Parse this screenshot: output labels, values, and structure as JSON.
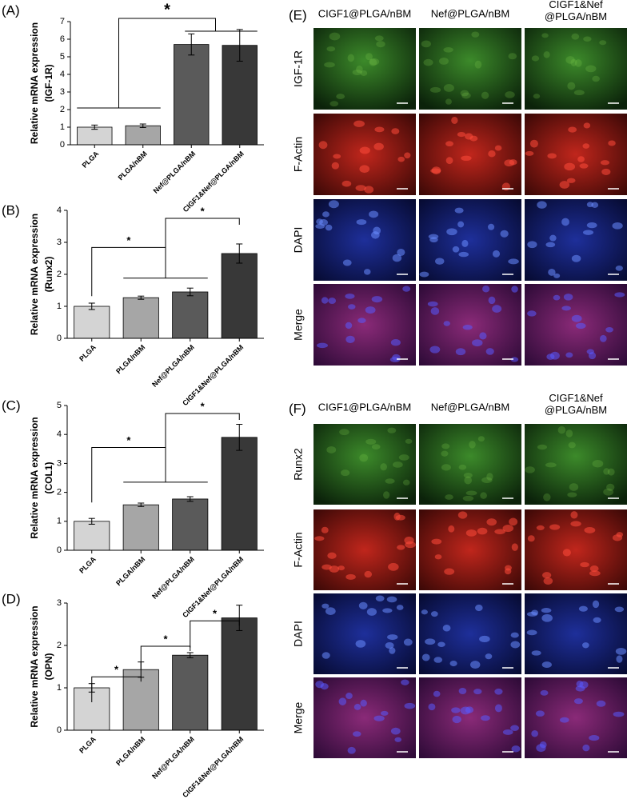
{
  "chart_data": [
    {
      "type": "bar",
      "panel_label": "(A)",
      "ylabel": [
        "Relative mRNA expression",
        "(IGF-1R)"
      ],
      "categories": [
        "PLGA",
        "PLGA/nBM",
        "Nef@PLGA/nBM",
        "CIGF1&Nef@PLGA/nBM"
      ],
      "values": [
        1.0,
        1.08,
        5.7,
        5.65
      ],
      "errors": [
        0.12,
        0.1,
        0.6,
        0.9
      ],
      "colors": [
        "#d4d4d4",
        "#a6a6a6",
        "#5a5a5a",
        "#383838"
      ],
      "ylim": [
        0,
        7
      ],
      "yticks": [
        0,
        1,
        2,
        3,
        4,
        5,
        6,
        7
      ],
      "annotations": [
        "*"
      ]
    },
    {
      "type": "bar",
      "panel_label": "(B)",
      "ylabel": [
        "Relative mRNA expression",
        "(Runx2)"
      ],
      "categories": [
        "PLGA",
        "PLGA/nBM",
        "Nef@PLGA/nBM",
        "CIGF1&Nef@PLGA/nBM"
      ],
      "values": [
        1.0,
        1.27,
        1.45,
        2.65
      ],
      "errors": [
        0.1,
        0.05,
        0.12,
        0.3
      ],
      "colors": [
        "#d4d4d4",
        "#a6a6a6",
        "#5a5a5a",
        "#383838"
      ],
      "ylim": [
        0,
        4
      ],
      "yticks": [
        0,
        1,
        2,
        3,
        4
      ],
      "annotations": [
        "*",
        "*"
      ]
    },
    {
      "type": "bar",
      "panel_label": "(C)",
      "ylabel": [
        "Relative mRNA expression",
        "(COL1)"
      ],
      "categories": [
        "PLGA",
        "PLGA/nBM",
        "Nef@PLGA/nBM",
        "CIGF1&Nef@PLGA/nBM"
      ],
      "values": [
        1.0,
        1.57,
        1.77,
        3.9
      ],
      "errors": [
        0.1,
        0.06,
        0.08,
        0.45
      ],
      "colors": [
        "#d4d4d4",
        "#a6a6a6",
        "#5a5a5a",
        "#383838"
      ],
      "ylim": [
        0,
        5
      ],
      "yticks": [
        0,
        1,
        2,
        3,
        4,
        5
      ],
      "annotations": [
        "*",
        "*"
      ]
    },
    {
      "type": "bar",
      "panel_label": "(D)",
      "ylabel": [
        "Relative mRNA expression",
        "(OPN)"
      ],
      "categories": [
        "PLGA",
        "PLGA/nBM",
        "Nef@PLGA/nBM",
        "CIGF1&Nef@PLGA/nBM"
      ],
      "values": [
        1.0,
        1.43,
        1.77,
        2.65
      ],
      "errors": [
        0.1,
        0.18,
        0.06,
        0.3
      ],
      "colors": [
        "#d4d4d4",
        "#a6a6a6",
        "#5a5a5a",
        "#383838"
      ],
      "ylim": [
        0,
        3
      ],
      "yticks": [
        0,
        1,
        2,
        3
      ],
      "annotations": [
        "*",
        "*",
        "*"
      ]
    }
  ],
  "panels": [
    {
      "label": "(E)",
      "columns": [
        [
          "CIGF1@PLGA/nBM"
        ],
        [
          "Nef@PLGA/nBM"
        ],
        [
          "CIGF1&Nef",
          "@PLGA/nBM"
        ]
      ],
      "rows": [
        "IGF-1R",
        "F-Actin",
        "DAPI",
        "Merge"
      ]
    },
    {
      "label": "(F)",
      "columns": [
        [
          "CIGF1@PLGA/nBM"
        ],
        [
          "Nef@PLGA/nBM"
        ],
        [
          "CIGF1&Nef",
          "@PLGA/nBM"
        ]
      ],
      "rows": [
        "Runx2",
        "F-Actin",
        "DAPI",
        "Merge"
      ]
    }
  ]
}
